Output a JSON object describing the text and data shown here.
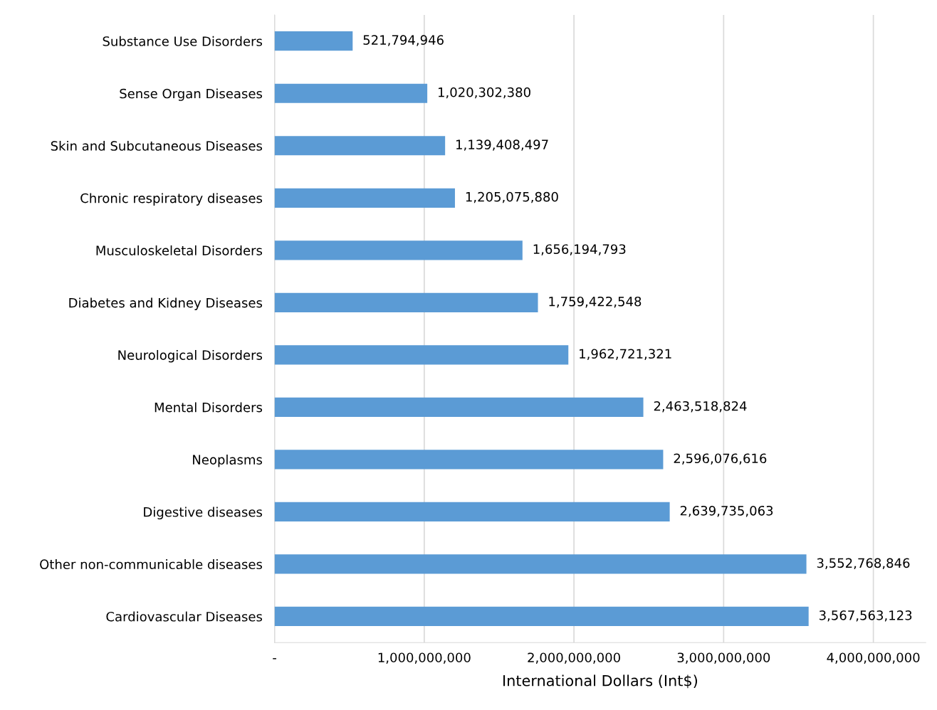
{
  "chart_data": {
    "type": "bar",
    "orientation": "horizontal",
    "xlabel": "International Dollars (Int$)",
    "categories": [
      "Substance Use Disorders",
      "Sense Organ Diseases",
      "Skin and Subcutaneous Diseases",
      "Chronic respiratory diseases",
      "Musculoskeletal Disorders",
      "Diabetes and Kidney Diseases",
      "Neurological Disorders",
      "Mental Disorders",
      "Neoplasms",
      "Digestive diseases",
      "Other non-communicable diseases",
      "Cardiovascular Diseases"
    ],
    "values": [
      521794946,
      1020302380,
      1139408497,
      1205075880,
      1656194793,
      1759422548,
      1962721321,
      2463518824,
      2596076616,
      2639735063,
      3552768846,
      3567563123
    ],
    "color": "#5b9bd5",
    "xlim": [
      0,
      4350000000
    ],
    "xticks": [
      {
        "value": 0,
        "label": "-"
      },
      {
        "value": 1000000000,
        "label": "1,000,000,000"
      },
      {
        "value": 2000000000,
        "label": "2,000,000,000"
      },
      {
        "value": 3000000000,
        "label": "3,000,000,000"
      },
      {
        "value": 4000000000,
        "label": "4,000,000,000"
      }
    ],
    "value_labels": [
      "521,794,946",
      "1,020,302,380",
      "1,139,408,497",
      "1,205,075,880",
      "1,656,194,793",
      "1,759,422,548",
      "1,962,721,321",
      "2,463,518,824",
      "2,596,076,616",
      "2,639,735,063",
      "3,552,768,846",
      "3,567,563,123"
    ],
    "grid": "x",
    "legend": false
  }
}
